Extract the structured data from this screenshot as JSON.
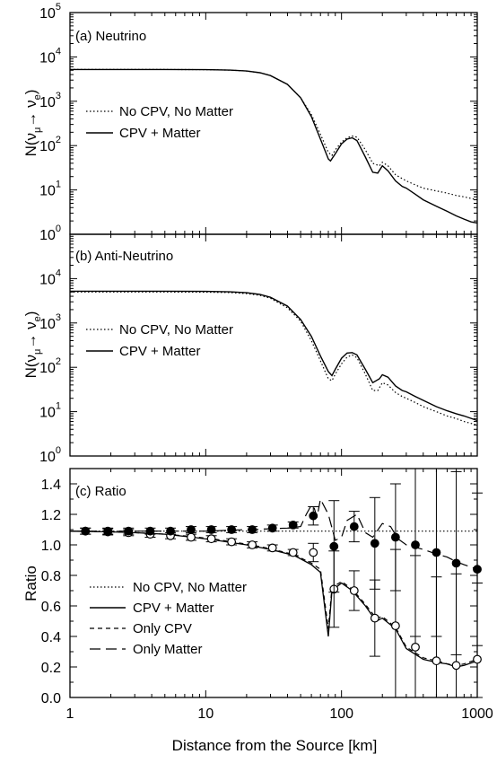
{
  "chart_data": [
    {
      "type": "line",
      "panel_label": "(a) Neutrino",
      "ylabel_main": "N(ν",
      "ylabel_sub1": "μ",
      "ylabel_arrow": "→ ν",
      "ylabel_sub2": "e",
      "ylabel_close": ")",
      "y_scale": "log",
      "ylim": [
        1,
        100000
      ],
      "xlim": [
        1,
        1000
      ],
      "x_scale": "log",
      "y_ticks": [
        {
          "base": "10",
          "exp": "0",
          "v": 1
        },
        {
          "base": "10",
          "exp": "1",
          "v": 10
        },
        {
          "base": "10",
          "exp": "2",
          "v": 100
        },
        {
          "base": "10",
          "exp": "3",
          "v": 1000
        },
        {
          "base": "10",
          "exp": "4",
          "v": 10000
        },
        {
          "base": "10",
          "exp": "5",
          "v": 100000
        }
      ],
      "legend": [
        {
          "label": "No CPV, No Matter",
          "style": "dotted"
        },
        {
          "label": "CPV + Matter",
          "style": "solid"
        }
      ],
      "series": [
        {
          "name": "No CPV, No Matter",
          "style": "dotted",
          "x": [
            1,
            5,
            10,
            15,
            20,
            25,
            30,
            40,
            50,
            60,
            70,
            80,
            85,
            90,
            100,
            110,
            120,
            130,
            150,
            170,
            190,
            200,
            220,
            250,
            280,
            300,
            350,
            400,
            500,
            600,
            700,
            800,
            1000
          ],
          "y": [
            5200,
            5200,
            5150,
            5050,
            4800,
            4400,
            3800,
            2400,
            1200,
            500,
            180,
            70,
            60,
            80,
            120,
            150,
            165,
            155,
            80,
            40,
            35,
            42,
            35,
            22,
            18,
            16,
            13,
            11,
            9.5,
            8.5,
            7.5,
            7,
            6
          ]
        },
        {
          "name": "CPV + Matter",
          "style": "solid",
          "x": [
            1,
            5,
            10,
            15,
            20,
            25,
            30,
            40,
            50,
            60,
            70,
            80,
            83,
            90,
            100,
            110,
            120,
            130,
            150,
            170,
            185,
            200,
            220,
            250,
            280,
            300,
            350,
            400,
            500,
            600,
            700,
            800,
            900,
            1000
          ],
          "y": [
            5200,
            5200,
            5150,
            5050,
            4800,
            4400,
            3800,
            2400,
            1200,
            450,
            140,
            50,
            45,
            65,
            110,
            140,
            150,
            130,
            55,
            25,
            24,
            35,
            27,
            16,
            12,
            11,
            8,
            6,
            4.3,
            3.3,
            2.6,
            2.2,
            1.9,
            1.8
          ]
        }
      ]
    },
    {
      "type": "line",
      "panel_label": "(b) Anti-Neutrino",
      "ylabel_main": "N(ν",
      "ylabel_sub1": "μ",
      "ylabel_arrow": "→ ν",
      "ylabel_sub2": "e",
      "ylabel_close": ")",
      "y_scale": "log",
      "ylim": [
        1,
        100000
      ],
      "xlim": [
        1,
        1000
      ],
      "x_scale": "log",
      "y_ticks": [
        {
          "base": "10",
          "exp": "0",
          "v": 1
        },
        {
          "base": "10",
          "exp": "1",
          "v": 10
        },
        {
          "base": "10",
          "exp": "2",
          "v": 100
        },
        {
          "base": "10",
          "exp": "3",
          "v": 1000
        },
        {
          "base": "10",
          "exp": "4",
          "v": 10000
        }
      ],
      "legend": [
        {
          "label": "No CPV, No Matter",
          "style": "dotted"
        },
        {
          "label": "CPV + Matter",
          "style": "solid"
        }
      ],
      "series": [
        {
          "name": "No CPV, No Matter",
          "style": "dotted",
          "x": [
            1,
            5,
            10,
            15,
            20,
            25,
            30,
            40,
            50,
            60,
            70,
            80,
            85,
            90,
            100,
            110,
            120,
            130,
            150,
            170,
            185,
            200,
            220,
            250,
            280,
            300,
            350,
            400,
            500,
            600,
            700,
            800,
            1000
          ],
          "y": [
            5000,
            5000,
            4950,
            4850,
            4600,
            4200,
            3600,
            2200,
            1100,
            400,
            140,
            55,
            50,
            70,
            120,
            170,
            190,
            165,
            70,
            30,
            30,
            45,
            40,
            27,
            22,
            20,
            16,
            13,
            10,
            8,
            7,
            6,
            5
          ]
        },
        {
          "name": "CPV + Matter",
          "style": "solid",
          "x": [
            1,
            5,
            10,
            15,
            20,
            25,
            30,
            40,
            50,
            60,
            70,
            80,
            85,
            90,
            100,
            110,
            120,
            130,
            150,
            170,
            190,
            200,
            220,
            250,
            280,
            300,
            350,
            400,
            500,
            600,
            700,
            800,
            1000
          ],
          "y": [
            5200,
            5200,
            5150,
            5050,
            4800,
            4400,
            3800,
            2400,
            1200,
            500,
            180,
            80,
            65,
            90,
            160,
            210,
            215,
            190,
            90,
            45,
            55,
            68,
            60,
            38,
            30,
            28,
            22,
            18,
            13,
            10.5,
            9,
            8,
            6.3
          ]
        }
      ]
    },
    {
      "type": "line",
      "panel_label": "(c) Ratio",
      "ylabel": "Ratio",
      "xlabel": "Distance from the Source [km]",
      "x_scale": "log",
      "xlim": [
        1,
        1000
      ],
      "ylim": [
        0.0,
        1.5
      ],
      "x_ticks": [
        "1",
        "10",
        "100",
        "1000"
      ],
      "y_ticks": [
        "0.0",
        "0.2",
        "0.4",
        "0.6",
        "0.8",
        "1.0",
        "1.2",
        "1.4"
      ],
      "legend": [
        {
          "label": "No CPV, No Matter",
          "style": "dotted"
        },
        {
          "label": "CPV + Matter",
          "style": "solid"
        },
        {
          "label": "Only CPV",
          "style": "short-dashed"
        },
        {
          "label": "Only Matter",
          "style": "long-dashed"
        }
      ],
      "series": [
        {
          "name": "No CPV, No Matter",
          "style": "dotted",
          "x": [
            1,
            1000
          ],
          "y": [
            1.09,
            1.09
          ]
        },
        {
          "name": "CPV + Matter",
          "style": "solid",
          "x": [
            1,
            2,
            3,
            5,
            8,
            12,
            20,
            30,
            45,
            60,
            70,
            80,
            85,
            100,
            120,
            150,
            180,
            200,
            250,
            300,
            400,
            500,
            600,
            700,
            800,
            1000
          ],
          "y": [
            1.09,
            1.085,
            1.08,
            1.07,
            1.05,
            1.03,
            1.0,
            0.97,
            0.93,
            0.87,
            0.82,
            0.4,
            0.7,
            0.75,
            0.7,
            0.6,
            0.5,
            0.52,
            0.45,
            0.32,
            0.25,
            0.23,
            0.22,
            0.2,
            0.21,
            0.24
          ]
        },
        {
          "name": "Only CPV",
          "style": "short-dashed",
          "x": [
            1,
            2,
            3,
            5,
            8,
            12,
            20,
            30,
            45,
            60,
            70,
            80,
            85,
            100,
            120,
            150,
            180,
            200,
            250,
            300,
            400,
            500,
            600,
            700,
            800,
            1000
          ],
          "y": [
            1.09,
            1.085,
            1.08,
            1.07,
            1.055,
            1.035,
            1.005,
            0.975,
            0.935,
            0.88,
            0.84,
            0.45,
            0.72,
            0.76,
            0.71,
            0.61,
            0.52,
            0.53,
            0.46,
            0.33,
            0.26,
            0.24,
            0.22,
            0.21,
            0.22,
            0.25
          ]
        },
        {
          "name": "Only Matter",
          "style": "long-dashed",
          "x": [
            1,
            5,
            10,
            20,
            30,
            40,
            50,
            55,
            60,
            63,
            66,
            70,
            80,
            90,
            100,
            110,
            130,
            150,
            170,
            200,
            230,
            260,
            300,
            400,
            500,
            600,
            700,
            800,
            1000
          ],
          "y": [
            1.09,
            1.09,
            1.09,
            1.1,
            1.105,
            1.11,
            1.12,
            1.2,
            1.26,
            1.24,
            1.18,
            1.3,
            1.2,
            1.03,
            1.05,
            1.16,
            1.2,
            1.08,
            1.05,
            1.14,
            1.12,
            1.04,
            1.0,
            0.97,
            0.94,
            0.92,
            0.89,
            0.87,
            0.84
          ]
        }
      ],
      "markers_filled": {
        "x": [
          1.3,
          1.9,
          2.7,
          3.9,
          5.5,
          7.8,
          11,
          15.5,
          22,
          31,
          44,
          62,
          88,
          124,
          176,
          250,
          350,
          500,
          700,
          1000
        ],
        "y": [
          1.09,
          1.09,
          1.09,
          1.09,
          1.09,
          1.1,
          1.1,
          1.1,
          1.1,
          1.11,
          1.13,
          1.19,
          0.99,
          1.12,
          1.01,
          1.05,
          1.0,
          0.95,
          0.88,
          0.84
        ],
        "err": [
          0.02,
          0.02,
          0.02,
          0.02,
          0.02,
          0.02,
          0.02,
          0.02,
          0.02,
          0.02,
          0.02,
          0.06,
          0.3,
          0.1,
          0.3,
          0.35,
          0.6,
          0.55,
          0.6,
          0.5
        ]
      },
      "markers_open": {
        "x": [
          1.3,
          1.9,
          2.7,
          3.9,
          5.5,
          7.8,
          11,
          15.5,
          22,
          31,
          44,
          62,
          88,
          124,
          176,
          250,
          350,
          500,
          700,
          1000
        ],
        "y": [
          1.09,
          1.085,
          1.08,
          1.07,
          1.06,
          1.05,
          1.04,
          1.02,
          1.0,
          0.98,
          0.95,
          0.95,
          0.71,
          0.7,
          0.52,
          0.47,
          0.33,
          0.24,
          0.21,
          0.25
        ],
        "err": [
          0.02,
          0.02,
          0.02,
          0.02,
          0.02,
          0.02,
          0.02,
          0.02,
          0.02,
          0.02,
          0.02,
          0.06,
          0.25,
          0.13,
          0.25,
          0.5,
          0.6,
          0.55,
          0.6,
          0.5
        ]
      }
    }
  ]
}
